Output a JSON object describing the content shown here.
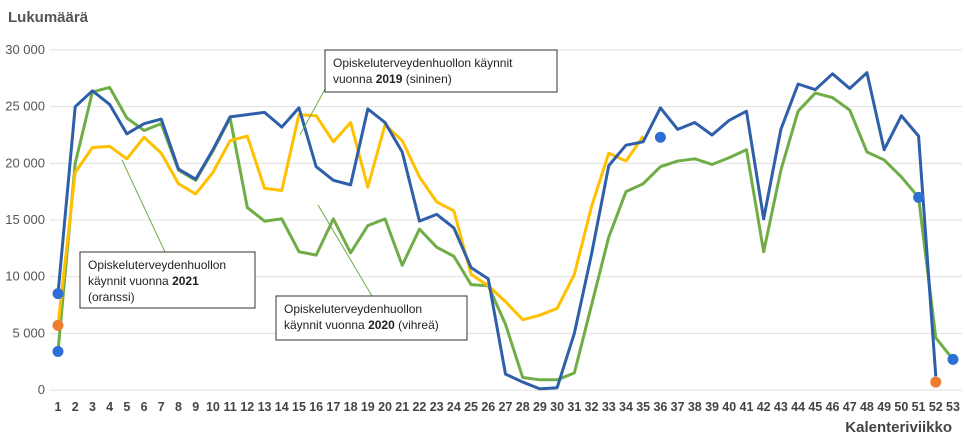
{
  "chart_data": {
    "type": "line",
    "y_axis_title": "Lukumäärä",
    "x_axis_title": "Kalenteriviikko",
    "x": [
      1,
      2,
      3,
      4,
      5,
      6,
      7,
      8,
      9,
      10,
      11,
      12,
      13,
      14,
      15,
      16,
      17,
      18,
      19,
      20,
      21,
      22,
      23,
      24,
      25,
      26,
      27,
      28,
      29,
      30,
      31,
      32,
      33,
      34,
      35,
      36,
      37,
      38,
      39,
      40,
      41,
      42,
      43,
      44,
      45,
      46,
      47,
      48,
      49,
      50,
      51,
      52,
      53
    ],
    "xlim": [
      1,
      53
    ],
    "ylim": [
      0,
      30000
    ],
    "yticks": [
      0,
      {
        "value": 5000,
        "label": "5 000"
      },
      {
        "value": 10000,
        "label": "10 000"
      },
      {
        "value": 15000,
        "label": "15 000"
      },
      {
        "value": 20000,
        "label": "20 000"
      },
      {
        "value": 25000,
        "label": "25 000"
      },
      {
        "value": 30000,
        "label": "30 000"
      }
    ],
    "grid": true,
    "series": [
      {
        "color": "#70ad47",
        "values": [
          3400,
          20000,
          26300,
          26700,
          24000,
          22900,
          23500,
          19400,
          18500,
          21100,
          24000,
          16100,
          14900,
          15100,
          12200,
          11900,
          15100,
          12100,
          14500,
          15100,
          11000,
          14200,
          12600,
          11800,
          9300,
          9200,
          5800,
          1100,
          900,
          900,
          1500,
          7500,
          13500,
          17500,
          18200,
          19700,
          20200,
          20400,
          19900,
          20500,
          21200,
          12200,
          19400,
          24600,
          26200,
          25800,
          24700,
          21000,
          20300,
          18800,
          17000,
          4600,
          2700
        ]
      },
      {
        "color": "#ffc000",
        "values": [
          5700,
          19200,
          21400,
          21500,
          20400,
          22300,
          20900,
          18200,
          17300,
          19200,
          22000,
          22400,
          17800,
          17600,
          24300,
          24200,
          21900,
          23600,
          17900,
          23400,
          22000,
          18800,
          16600,
          15800,
          10200,
          9200,
          7800,
          6200,
          6600,
          7200,
          10200,
          16200,
          20900,
          20200,
          22400,
          null,
          null,
          null,
          null,
          null,
          null,
          null,
          null,
          null,
          null,
          null,
          null,
          null,
          null,
          null,
          null,
          null,
          null
        ]
      },
      {
        "color": "#2e5fa8",
        "values": [
          8500,
          25000,
          26400,
          25200,
          22600,
          23500,
          23900,
          19500,
          18600,
          21200,
          24100,
          24300,
          24500,
          23200,
          24900,
          19700,
          18500,
          18100,
          24800,
          23600,
          21000,
          14900,
          15500,
          14300,
          10800,
          9800,
          1400,
          700,
          100,
          200,
          5000,
          12000,
          19800,
          21600,
          21900,
          24900,
          23000,
          23600,
          22500,
          23800,
          24600,
          15100,
          23000,
          27000,
          26500,
          27900,
          26600,
          28000,
          21200,
          24200,
          22400,
          1200,
          null
        ]
      }
    ],
    "markers": [
      {
        "x": 1,
        "value": 8500,
        "color": "#2e6fd6"
      },
      {
        "x": 1,
        "value": 3400,
        "color": "#2e6fd6"
      },
      {
        "x": 1,
        "value": 5700,
        "color": "#ed7d31"
      },
      {
        "x": 36,
        "value": 22300,
        "color": "#2e6fd6"
      },
      {
        "x": 51,
        "value": 17000,
        "color": "#2e6fd6"
      },
      {
        "x": 52,
        "value": 700,
        "color": "#ed7d31"
      },
      {
        "x": 53,
        "value": 2700,
        "color": "#2e6fd6"
      }
    ],
    "annotations": [
      {
        "lines": [
          [
            "Opiskeluterveydenhuollon käynnit"
          ],
          [
            "vuonna ",
            "2019",
            " (sininen)"
          ]
        ]
      },
      {
        "lines": [
          [
            "Opiskeluterveydenhuollon"
          ],
          [
            "käynnit vuonna ",
            "2021"
          ],
          [
            "(oranssi)"
          ]
        ]
      },
      {
        "lines": [
          [
            "Opiskeluterveydenhuollon"
          ],
          [
            "käynnit vuonna ",
            "2020",
            " (vihreä)"
          ]
        ]
      }
    ]
  }
}
